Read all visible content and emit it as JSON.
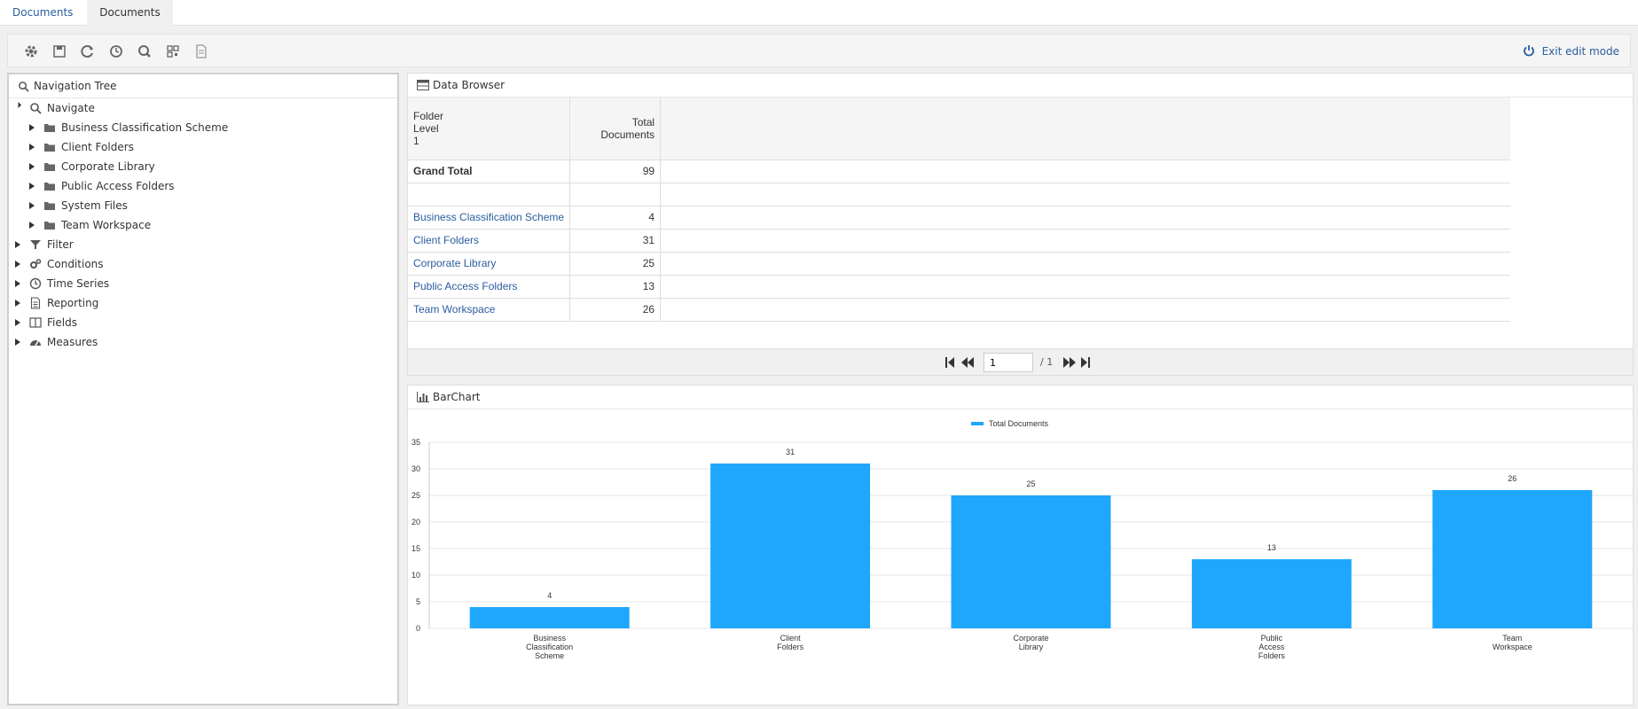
{
  "tabs": [
    {
      "label": "Documents"
    },
    {
      "label": "Documents"
    }
  ],
  "toolbar": {
    "exit_label": "Exit edit mode"
  },
  "nav": {
    "title": "Navigation Tree",
    "root": "Navigate",
    "folders": [
      "Business Classification Scheme",
      "Client Folders",
      "Corporate Library",
      "Public Access Folders",
      "System Files",
      "Team Workspace"
    ],
    "sections": [
      "Filter",
      "Conditions",
      "Time Series",
      "Reporting",
      "Fields",
      "Measures"
    ]
  },
  "data_browser": {
    "title": "Data Browser",
    "col1_header": [
      "Folder",
      "Level",
      "1"
    ],
    "col2_header": [
      "Total",
      "Documents"
    ],
    "grand_total_label": "Grand Total",
    "grand_total_value": "99",
    "rows": [
      {
        "name": "Business Classification Scheme",
        "value": "4"
      },
      {
        "name": "Client Folders",
        "value": "31"
      },
      {
        "name": "Corporate Library",
        "value": "25"
      },
      {
        "name": "Public Access Folders",
        "value": "13"
      },
      {
        "name": "Team Workspace",
        "value": "26"
      }
    ],
    "pager": {
      "page": "1",
      "total": "/ 1"
    }
  },
  "bar_chart": {
    "title": "BarChart"
  },
  "chart_data": {
    "type": "bar",
    "categories": [
      [
        "Business",
        "Classification",
        "Scheme"
      ],
      [
        "Client",
        "Folders"
      ],
      [
        "Corporate",
        "Library"
      ],
      [
        "Public",
        "Access",
        "Folders"
      ],
      [
        "Team",
        "Workspace"
      ]
    ],
    "series": [
      {
        "name": "Total Documents",
        "values": [
          4,
          31,
          25,
          13,
          26
        ],
        "color": "#1ea7fd"
      }
    ],
    "ylim": [
      0,
      35
    ],
    "yticks": [
      0,
      5,
      10,
      15,
      20,
      25,
      30,
      35
    ],
    "legend": "top-center",
    "grid": true,
    "data_labels": true
  },
  "colors": {
    "accent": "#2a5d9f",
    "bar": "#1ea7fd"
  }
}
